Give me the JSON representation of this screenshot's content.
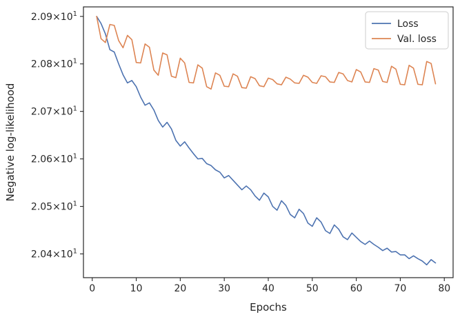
{
  "chart_data": {
    "type": "line",
    "title": "",
    "xlabel": "Epochs",
    "ylabel": "Negative log-likelihood",
    "xlim": [
      -2,
      82
    ],
    "ylim": [
      20.35,
      20.92
    ],
    "xticks": [
      0,
      10,
      20,
      30,
      40,
      50,
      60,
      70,
      80
    ],
    "yticks": [
      {
        "value": 20.4,
        "mantissa": "2.04",
        "base": "10",
        "exp": "1"
      },
      {
        "value": 20.5,
        "mantissa": "2.05",
        "base": "10",
        "exp": "1"
      },
      {
        "value": 20.6,
        "mantissa": "2.06",
        "base": "10",
        "exp": "1"
      },
      {
        "value": 20.7,
        "mantissa": "2.07",
        "base": "10",
        "exp": "1"
      },
      {
        "value": 20.8,
        "mantissa": "2.08",
        "base": "10",
        "exp": "1"
      },
      {
        "value": 20.9,
        "mantissa": "2.09",
        "base": "10",
        "exp": "1"
      }
    ],
    "grid": false,
    "legend_position": "top-right",
    "x": [
      1,
      2,
      3,
      4,
      5,
      6,
      7,
      8,
      9,
      10,
      11,
      12,
      13,
      14,
      15,
      16,
      17,
      18,
      19,
      20,
      21,
      22,
      23,
      24,
      25,
      26,
      27,
      28,
      29,
      30,
      31,
      32,
      33,
      34,
      35,
      36,
      37,
      38,
      39,
      40,
      41,
      42,
      43,
      44,
      45,
      46,
      47,
      48,
      49,
      50,
      51,
      52,
      53,
      54,
      55,
      56,
      57,
      58,
      59,
      60,
      61,
      62,
      63,
      64,
      65,
      66,
      67,
      68,
      69,
      70,
      71,
      72,
      73,
      74,
      75,
      76,
      77,
      78
    ],
    "series": [
      {
        "name": "Loss",
        "color": "#4c72b0",
        "values": [
          20.9,
          20.885,
          20.863,
          20.83,
          20.825,
          20.8,
          20.777,
          20.76,
          20.765,
          20.752,
          20.73,
          20.713,
          20.718,
          20.703,
          20.681,
          20.667,
          20.677,
          20.663,
          20.639,
          20.627,
          20.636,
          20.623,
          20.611,
          20.6,
          20.601,
          20.59,
          20.586,
          20.577,
          20.572,
          20.56,
          20.565,
          20.555,
          20.545,
          20.535,
          20.543,
          20.535,
          20.522,
          20.513,
          20.528,
          20.52,
          20.5,
          20.492,
          20.512,
          20.502,
          20.483,
          20.476,
          20.494,
          20.485,
          20.465,
          20.458,
          20.476,
          20.467,
          20.449,
          20.443,
          20.461,
          20.452,
          20.436,
          20.43,
          20.444,
          20.435,
          20.426,
          20.42,
          20.427,
          20.42,
          20.414,
          20.407,
          20.412,
          20.404,
          20.405,
          20.398,
          20.398,
          20.39,
          20.396,
          20.39,
          20.385,
          20.377,
          20.388,
          20.381
        ]
      },
      {
        "name": "Val. loss",
        "color": "#dd8452",
        "values": [
          20.9,
          20.853,
          20.845,
          20.883,
          20.881,
          20.849,
          20.834,
          20.86,
          20.851,
          20.803,
          20.802,
          20.842,
          20.835,
          20.787,
          20.776,
          20.823,
          20.819,
          20.774,
          20.771,
          20.812,
          20.802,
          20.761,
          20.76,
          20.798,
          20.791,
          20.752,
          20.747,
          20.781,
          20.776,
          20.753,
          20.752,
          20.779,
          20.774,
          20.75,
          20.749,
          20.773,
          20.769,
          20.754,
          20.752,
          20.77,
          20.767,
          20.758,
          20.756,
          20.772,
          20.768,
          20.76,
          20.759,
          20.776,
          20.772,
          20.761,
          20.759,
          20.775,
          20.773,
          20.762,
          20.761,
          20.782,
          20.779,
          20.765,
          20.762,
          20.788,
          20.783,
          20.762,
          20.761,
          20.79,
          20.787,
          20.763,
          20.761,
          20.795,
          20.789,
          20.757,
          20.756,
          20.797,
          20.791,
          20.757,
          20.756,
          20.805,
          20.801,
          20.758
        ]
      }
    ]
  }
}
